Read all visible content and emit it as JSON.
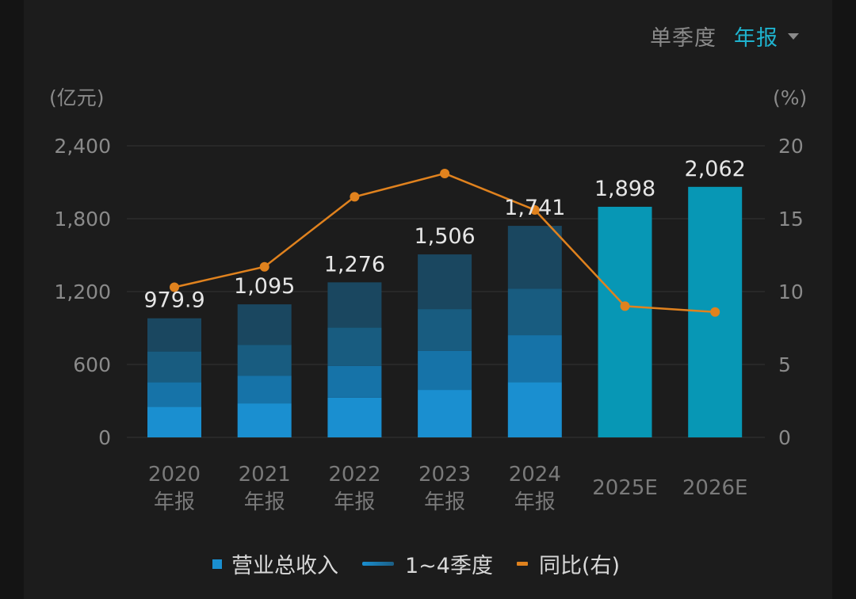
{
  "header": {
    "period_options": [
      "单季度",
      "年报"
    ],
    "selected_period": "年报",
    "dropdown_icon": "caret-down-icon"
  },
  "colors": {
    "accent": "#1fb3cf",
    "quarter_colors": [
      "#1a8fd0",
      "#1673a8",
      "#185c80",
      "#1a4760"
    ],
    "estimate_bar": "#0797b5",
    "yoy_line": "#e0821e",
    "grid": "#333333",
    "axis_text": "#8a8a8a",
    "value_text": "#e6e6e6"
  },
  "chart_data": {
    "type": "bar",
    "title": "",
    "left_axis_unit": "(亿元)",
    "right_axis_unit": "(%)",
    "ylim": [
      0,
      2400
    ],
    "y_ticks": [
      0,
      600,
      1200,
      1800,
      2400
    ],
    "y_tick_labels": [
      "0",
      "600",
      "1,200",
      "1,800",
      "2,400"
    ],
    "y2lim": [
      0,
      20
    ],
    "y2_ticks": [
      0,
      5,
      10,
      15,
      20
    ],
    "y2_tick_labels": [
      "0",
      "5",
      "10",
      "15",
      "20"
    ],
    "grid": true,
    "categories": [
      {
        "year": "2020",
        "sub": "年报"
      },
      {
        "year": "2021",
        "sub": "年报"
      },
      {
        "year": "2022",
        "sub": "年报"
      },
      {
        "year": "2023",
        "sub": "年报"
      },
      {
        "year": "2024",
        "sub": "年报"
      },
      {
        "year": "2025E",
        "sub": ""
      },
      {
        "year": "2026E",
        "sub": ""
      }
    ],
    "totals": [
      979.9,
      1095,
      1276,
      1506,
      1741,
      1898,
      2062
    ],
    "total_labels": [
      "979.9",
      "1,095",
      "1,276",
      "1,506",
      "1,741",
      "1,898",
      "2,062"
    ],
    "is_estimate": [
      false,
      false,
      false,
      false,
      false,
      true,
      true
    ],
    "quarterly_breakdown": [
      [
        253,
        201,
        253,
        273
      ],
      [
        280,
        228,
        254,
        333
      ],
      [
        327,
        262,
        314,
        373
      ],
      [
        391,
        320,
        345,
        450
      ],
      [
        453,
        388,
        382,
        518
      ],
      null,
      null
    ],
    "series": [
      {
        "name": "营业总收入",
        "type": "bar",
        "values": [
          979.9,
          1095,
          1276,
          1506,
          1741,
          1898,
          2062
        ]
      },
      {
        "name": "1~4季度",
        "type": "stacked-bar",
        "values": "quarterly_breakdown"
      },
      {
        "name": "同比(右)",
        "type": "line",
        "axis": "right",
        "values": [
          10.3,
          11.7,
          16.5,
          18.1,
          15.6,
          9.0,
          8.6
        ]
      }
    ],
    "legend": {
      "position": "bottom-center",
      "items": [
        {
          "label": "营业总收入",
          "marker": "square"
        },
        {
          "label": "1~4季度",
          "marker": "gradient-line"
        },
        {
          "label": "同比(右)",
          "marker": "dash"
        }
      ]
    }
  }
}
